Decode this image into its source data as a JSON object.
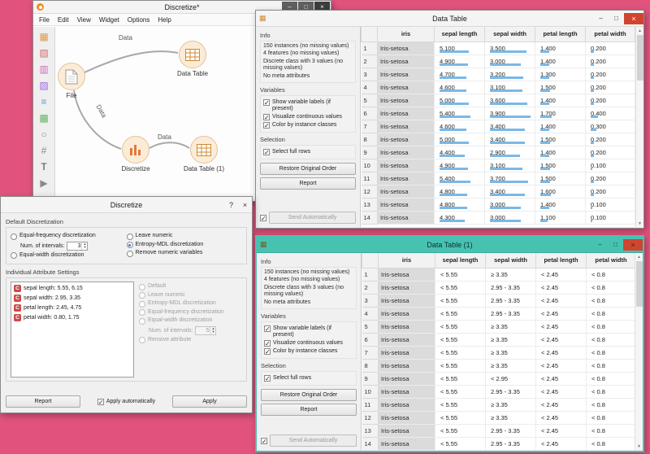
{
  "colors": {
    "desktop": "#e1537d",
    "teal": "#47c2b1",
    "bar_blue": "#7ab8e6",
    "close_red": "#d0452f"
  },
  "canvas_window": {
    "title": "Discretize*",
    "menus": [
      "File",
      "Edit",
      "View",
      "Widget",
      "Options",
      "Help"
    ],
    "toolbox": [
      {
        "name": "grid",
        "glyph": "▦",
        "color": "#e8973a"
      },
      {
        "name": "diagonal-grid",
        "glyph": "▧",
        "color": "#d96a6a"
      },
      {
        "name": "striped-grid",
        "glyph": "▥",
        "color": "#d668b8"
      },
      {
        "name": "hatched-grid",
        "glyph": "▨",
        "color": "#9a6ad9"
      },
      {
        "name": "rows",
        "glyph": "≡",
        "color": "#5aa0d8"
      },
      {
        "name": "mesh-grid",
        "glyph": "▩",
        "color": "#69b56a"
      },
      {
        "name": "circle",
        "glyph": "○",
        "color": "#8a8a8a"
      },
      {
        "name": "hash",
        "glyph": "#",
        "color": "#8a8a8a"
      },
      {
        "name": "text",
        "glyph": "T",
        "color": "#444444"
      },
      {
        "name": "arrow",
        "glyph": "▶",
        "color": "#8a8a8a"
      }
    ],
    "nodes": {
      "file": "File",
      "data_table": "Data Table",
      "discretize": "Discretize",
      "data_table_1": "Data Table (1)"
    },
    "links": [
      "Data",
      "Data",
      "Data"
    ]
  },
  "table_window": {
    "title": "Data Table",
    "sidebar": {
      "info_title": "Info",
      "info_lines": [
        "150 instances (no missing values)",
        "4 features (no missing values)",
        "Discrete class with 3 values (no missing values)",
        "No meta attributes"
      ],
      "variables_title": "Variables",
      "variable_options": [
        "Show variable labels (if present)",
        "Visualize continuous values",
        "Color by instance classes"
      ],
      "selection_title": "Selection",
      "selection_option": "Select full rows",
      "restore_label": "Restore Original Order",
      "report_label": "Report",
      "send_label": "Send Automatically"
    },
    "columns": [
      "iris",
      "sepal length",
      "sepal width",
      "petal length",
      "petal width"
    ],
    "class_value": "Iris-setosa",
    "col_max": [
      7.9,
      4.4,
      6.9,
      2.5
    ],
    "rows": [
      [
        5.1,
        3.5,
        1.4,
        0.2
      ],
      [
        4.9,
        3.0,
        1.4,
        0.2
      ],
      [
        4.7,
        3.2,
        1.3,
        0.2
      ],
      [
        4.6,
        3.1,
        1.5,
        0.2
      ],
      [
        5.0,
        3.6,
        1.4,
        0.2
      ],
      [
        5.4,
        3.9,
        1.7,
        0.4
      ],
      [
        4.6,
        3.4,
        1.4,
        0.3
      ],
      [
        5.0,
        3.4,
        1.5,
        0.2
      ],
      [
        4.4,
        2.9,
        1.4,
        0.2
      ],
      [
        4.9,
        3.1,
        1.5,
        0.1
      ],
      [
        5.4,
        3.7,
        1.5,
        0.2
      ],
      [
        4.8,
        3.4,
        1.6,
        0.2
      ],
      [
        4.8,
        3.0,
        1.4,
        0.1
      ],
      [
        4.3,
        3.0,
        1.1,
        0.1
      ]
    ]
  },
  "discretize_dialog": {
    "title": "Discretize",
    "help_glyph": "?",
    "default_section_title": "Default Discretization",
    "radio_equal_freq": "Equal-frequency discretization",
    "num_intervals_label": "Num. of intervals:",
    "num_intervals_value": "3",
    "radio_equal_width": "Equal-width discretization",
    "radio_leave_numeric": "Leave numeric",
    "radio_entropy": "Entropy-MDL discretization",
    "radio_remove_numeric": "Remove numeric variables",
    "individual_section_title": "Individual Attribute Settings",
    "attributes": [
      {
        "badge": "C",
        "text": "sepal length: 5.55, 6.15"
      },
      {
        "badge": "C",
        "text": "sepal width: 2.95, 3.35"
      },
      {
        "badge": "C",
        "text": "petal length: 2.45, 4.75"
      },
      {
        "badge": "C",
        "text": "petal width: 0.80, 1.75"
      }
    ],
    "indiv_options": [
      "Default",
      "Leave numeric",
      "Entropy-MDL discretization",
      "Equal-frequency discretization",
      "Equal-width discretization"
    ],
    "indiv_num_intervals_label": "Num. of intervals:",
    "indiv_num_intervals_value": "5",
    "indiv_remove": "Remove attribute",
    "report_label": "Report",
    "apply_auto_label": "Apply automatically",
    "apply_label": "Apply"
  },
  "table1_window": {
    "title": "Data Table (1)",
    "sidebar": {
      "info_title": "Info",
      "info_lines": [
        "150 instances (no missing values)",
        "4 features (no missing values)",
        "Discrete class with 3 values (no missing values)",
        "No meta attributes"
      ],
      "variables_title": "Variables",
      "variable_options": [
        "Show variable labels (if present)",
        "Visualize continuous values",
        "Color by instance classes"
      ],
      "selection_title": "Selection",
      "selection_option": "Select full rows",
      "restore_label": "Restore Original Order",
      "report_label": "Report",
      "send_label": "Send Automatically"
    },
    "columns": [
      "iris",
      "sepal length",
      "sepal width",
      "petal length",
      "petal width"
    ],
    "class_value": "Iris-setosa",
    "rows": [
      [
        "< 5.55",
        "≥ 3.35",
        "< 2.45",
        "< 0.8"
      ],
      [
        "< 5.55",
        "2.95 - 3.35",
        "< 2.45",
        "< 0.8"
      ],
      [
        "< 5.55",
        "2.95 - 3.35",
        "< 2.45",
        "< 0.8"
      ],
      [
        "< 5.55",
        "2.95 - 3.35",
        "< 2.45",
        "< 0.8"
      ],
      [
        "< 5.55",
        "≥ 3.35",
        "< 2.45",
        "< 0.8"
      ],
      [
        "< 5.55",
        "≥ 3.35",
        "< 2.45",
        "< 0.8"
      ],
      [
        "< 5.55",
        "≥ 3.35",
        "< 2.45",
        "< 0.8"
      ],
      [
        "< 5.55",
        "≥ 3.35",
        "< 2.45",
        "< 0.8"
      ],
      [
        "< 5.55",
        "< 2.95",
        "< 2.45",
        "< 0.8"
      ],
      [
        "< 5.55",
        "2.95 - 3.35",
        "< 2.45",
        "< 0.8"
      ],
      [
        "< 5.55",
        "≥ 3.35",
        "< 2.45",
        "< 0.8"
      ],
      [
        "< 5.55",
        "≥ 3.35",
        "< 2.45",
        "< 0.8"
      ],
      [
        "< 5.55",
        "2.95 - 3.35",
        "< 2.45",
        "< 0.8"
      ],
      [
        "< 5.55",
        "2.95 - 3.35",
        "< 2.45",
        "< 0.8"
      ]
    ]
  }
}
